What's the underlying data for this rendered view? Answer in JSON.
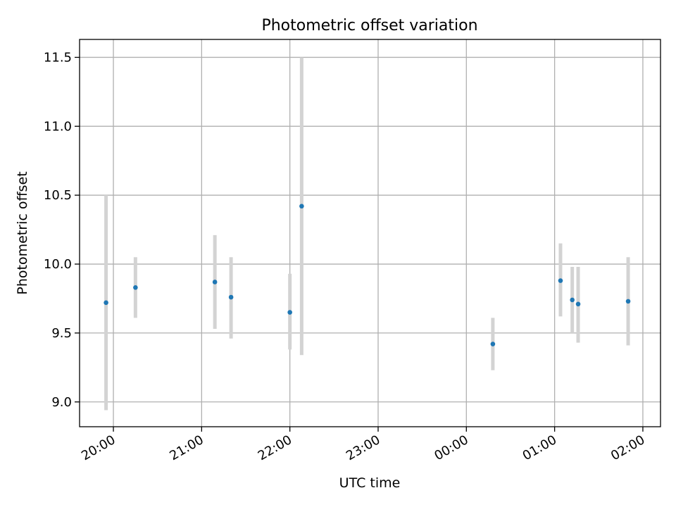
{
  "chart_data": {
    "type": "scatter",
    "title": "Photometric offset variation",
    "xlabel": "UTC time",
    "ylabel": "Photometric offset",
    "grid": true,
    "x_axis": {
      "kind": "time",
      "range": [
        "19:37",
        "02:12"
      ],
      "ticks": [
        "20:00",
        "21:00",
        "22:00",
        "23:00",
        "00:00",
        "01:00",
        "02:00"
      ]
    },
    "y_axis": {
      "range": [
        8.82,
        11.63
      ],
      "ticks": [
        "9.0",
        "9.5",
        "10.0",
        "10.5",
        "11.0",
        "11.5"
      ]
    },
    "series": [
      {
        "error_bars": true,
        "points": [
          {
            "t": "19:55",
            "y": 9.72,
            "y_low": 8.94,
            "y_high": 10.5
          },
          {
            "t": "20:15",
            "y": 9.83,
            "y_low": 9.61,
            "y_high": 10.05
          },
          {
            "t": "21:09",
            "y": 9.87,
            "y_low": 9.53,
            "y_high": 10.21
          },
          {
            "t": "21:20",
            "y": 9.76,
            "y_low": 9.46,
            "y_high": 10.05
          },
          {
            "t": "22:00",
            "y": 9.65,
            "y_low": 9.38,
            "y_high": 9.93
          },
          {
            "t": "22:08",
            "y": 10.42,
            "y_low": 9.34,
            "y_high": 11.5
          },
          {
            "t": "00:18",
            "y": 9.42,
            "y_low": 9.23,
            "y_high": 9.61
          },
          {
            "t": "01:04",
            "y": 9.88,
            "y_low": 9.62,
            "y_high": 10.15
          },
          {
            "t": "01:12",
            "y": 9.74,
            "y_low": 9.5,
            "y_high": 9.98
          },
          {
            "t": "01:16",
            "y": 9.71,
            "y_low": 9.43,
            "y_high": 9.98
          },
          {
            "t": "01:50",
            "y": 9.73,
            "y_low": 9.41,
            "y_high": 10.05
          }
        ]
      }
    ],
    "colors": {
      "marker": "#1f77b4",
      "error_bar": "#d3d3d3",
      "grid": "#b0b0b0",
      "axes": "#000000"
    }
  }
}
